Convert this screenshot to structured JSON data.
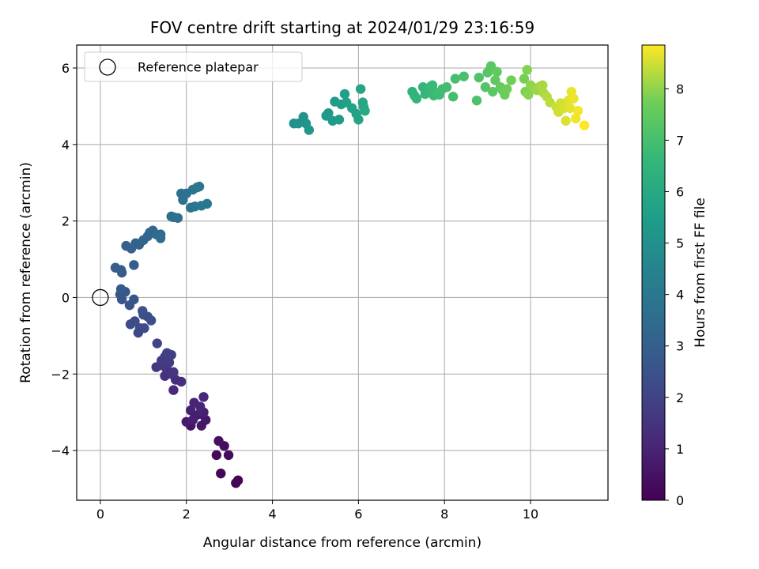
{
  "chart_data": {
    "type": "scatter",
    "title": "FOV centre drift starting at 2024/01/29 23:16:59",
    "xlabel": "Angular distance from reference (arcmin)",
    "ylabel": "Rotation from reference (arcmin)",
    "xlim": [
      -0.55,
      11.8
    ],
    "ylim": [
      -5.3,
      6.6
    ],
    "xticks": [
      0,
      2,
      4,
      6,
      8,
      10
    ],
    "yticks": [
      -4,
      -2,
      0,
      2,
      4,
      6
    ],
    "xtick_labels": [
      "0",
      "2",
      "4",
      "6",
      "8",
      "10"
    ],
    "ytick_labels": [
      "−4",
      "−2",
      "0",
      "2",
      "4",
      "6"
    ],
    "grid": true,
    "legend": {
      "placement": "top-left",
      "entries": [
        "Reference platepar"
      ]
    },
    "reference_point": {
      "x": 0,
      "y": 0,
      "label": "Reference platepar"
    },
    "colorbar": {
      "label": "Hours from first FF file",
      "colormap": "viridis",
      "range": [
        0,
        8.85
      ],
      "ticks": [
        0,
        1,
        2,
        3,
        4,
        5,
        6,
        7,
        8
      ],
      "tick_labels": [
        "0",
        "1",
        "2",
        "3",
        "4",
        "5",
        "6",
        "7",
        "8"
      ]
    },
    "series": [
      {
        "color_by": "hours",
        "points": [
          {
            "x": 3.15,
            "y": -4.85,
            "hours": 0.05
          },
          {
            "x": 3.2,
            "y": -4.78,
            "hours": 0.1
          },
          {
            "x": 2.8,
            "y": -4.6,
            "hours": 0.15
          },
          {
            "x": 2.7,
            "y": -4.12,
            "hours": 0.25
          },
          {
            "x": 2.98,
            "y": -4.12,
            "hours": 0.3
          },
          {
            "x": 2.88,
            "y": -3.88,
            "hours": 0.4
          },
          {
            "x": 2.75,
            "y": -3.75,
            "hours": 0.45
          },
          {
            "x": 2.1,
            "y": -3.35,
            "hours": 0.55
          },
          {
            "x": 2.35,
            "y": -3.35,
            "hours": 0.6
          },
          {
            "x": 2.45,
            "y": -3.2,
            "hours": 0.65
          },
          {
            "x": 2.0,
            "y": -3.25,
            "hours": 0.7
          },
          {
            "x": 2.2,
            "y": -3.1,
            "hours": 0.75
          },
          {
            "x": 2.3,
            "y": -3.05,
            "hours": 0.8
          },
          {
            "x": 2.15,
            "y": -3.2,
            "hours": 0.85
          },
          {
            "x": 2.1,
            "y": -2.95,
            "hours": 0.9
          },
          {
            "x": 2.4,
            "y": -3.0,
            "hours": 0.95
          },
          {
            "x": 2.18,
            "y": -2.75,
            "hours": 1.0
          },
          {
            "x": 2.32,
            "y": -2.85,
            "hours": 1.05
          },
          {
            "x": 2.4,
            "y": -2.6,
            "hours": 1.1
          },
          {
            "x": 1.7,
            "y": -2.42,
            "hours": 1.2
          },
          {
            "x": 1.75,
            "y": -2.15,
            "hours": 1.3
          },
          {
            "x": 1.88,
            "y": -2.2,
            "hours": 1.35
          },
          {
            "x": 1.5,
            "y": -2.05,
            "hours": 1.4
          },
          {
            "x": 1.65,
            "y": -2.0,
            "hours": 1.45
          },
          {
            "x": 1.55,
            "y": -1.9,
            "hours": 1.5
          },
          {
            "x": 1.7,
            "y": -1.95,
            "hours": 1.55
          },
          {
            "x": 1.3,
            "y": -1.82,
            "hours": 1.6
          },
          {
            "x": 1.45,
            "y": -1.78,
            "hours": 1.65
          },
          {
            "x": 1.42,
            "y": -1.65,
            "hours": 1.7
          },
          {
            "x": 1.6,
            "y": -1.7,
            "hours": 1.75
          },
          {
            "x": 1.5,
            "y": -1.55,
            "hours": 1.8
          },
          {
            "x": 1.65,
            "y": -1.5,
            "hours": 1.85
          },
          {
            "x": 1.55,
            "y": -1.45,
            "hours": 1.9
          },
          {
            "x": 1.32,
            "y": -1.2,
            "hours": 2.0
          },
          {
            "x": 0.88,
            "y": -0.92,
            "hours": 2.1
          },
          {
            "x": 0.92,
            "y": -0.8,
            "hours": 2.15
          },
          {
            "x": 1.02,
            "y": -0.8,
            "hours": 2.2
          },
          {
            "x": 0.7,
            "y": -0.7,
            "hours": 2.25
          },
          {
            "x": 0.8,
            "y": -0.62,
            "hours": 2.3
          },
          {
            "x": 1.18,
            "y": -0.6,
            "hours": 2.35
          },
          {
            "x": 1.1,
            "y": -0.5,
            "hours": 2.4
          },
          {
            "x": 1.0,
            "y": -0.45,
            "hours": 2.45
          },
          {
            "x": 0.98,
            "y": -0.35,
            "hours": 2.5
          },
          {
            "x": 0.68,
            "y": -0.2,
            "hours": 2.55
          },
          {
            "x": 0.5,
            "y": -0.05,
            "hours": 2.6
          },
          {
            "x": 0.78,
            "y": -0.05,
            "hours": 2.65
          },
          {
            "x": 0.46,
            "y": 0.08,
            "hours": 2.7
          },
          {
            "x": 0.58,
            "y": 0.15,
            "hours": 2.72
          },
          {
            "x": 0.48,
            "y": 0.22,
            "hours": 2.75
          },
          {
            "x": 0.5,
            "y": 0.65,
            "hours": 2.85
          },
          {
            "x": 0.48,
            "y": 0.72,
            "hours": 2.9
          },
          {
            "x": 0.35,
            "y": 0.78,
            "hours": 2.92
          },
          {
            "x": 0.78,
            "y": 0.85,
            "hours": 2.95
          },
          {
            "x": 0.6,
            "y": 1.35,
            "hours": 3.0
          },
          {
            "x": 0.72,
            "y": 1.28,
            "hours": 3.05
          },
          {
            "x": 0.9,
            "y": 1.38,
            "hours": 3.1
          },
          {
            "x": 0.82,
            "y": 1.42,
            "hours": 3.15
          },
          {
            "x": 1.0,
            "y": 1.5,
            "hours": 3.2
          },
          {
            "x": 1.1,
            "y": 1.6,
            "hours": 3.25
          },
          {
            "x": 1.15,
            "y": 1.7,
            "hours": 3.3
          },
          {
            "x": 1.22,
            "y": 1.75,
            "hours": 3.35
          },
          {
            "x": 1.3,
            "y": 1.65,
            "hours": 3.4
          },
          {
            "x": 1.4,
            "y": 1.65,
            "hours": 3.45
          },
          {
            "x": 1.4,
            "y": 1.55,
            "hours": 3.5
          },
          {
            "x": 1.65,
            "y": 2.12,
            "hours": 3.6
          },
          {
            "x": 1.7,
            "y": 2.1,
            "hours": 3.62
          },
          {
            "x": 1.8,
            "y": 2.08,
            "hours": 3.65
          },
          {
            "x": 1.88,
            "y": 2.72,
            "hours": 3.7
          },
          {
            "x": 1.92,
            "y": 2.55,
            "hours": 3.72
          },
          {
            "x": 2.0,
            "y": 2.72,
            "hours": 3.75
          },
          {
            "x": 2.1,
            "y": 2.35,
            "hours": 3.8
          },
          {
            "x": 2.15,
            "y": 2.82,
            "hours": 3.85
          },
          {
            "x": 2.2,
            "y": 2.38,
            "hours": 3.87
          },
          {
            "x": 2.25,
            "y": 2.88,
            "hours": 3.9
          },
          {
            "x": 2.3,
            "y": 2.9,
            "hours": 3.95
          },
          {
            "x": 2.35,
            "y": 2.4,
            "hours": 3.97
          },
          {
            "x": 2.48,
            "y": 2.45,
            "hours": 4.0
          },
          {
            "x": 4.5,
            "y": 4.55,
            "hours": 5.0
          },
          {
            "x": 4.6,
            "y": 4.55,
            "hours": 5.05
          },
          {
            "x": 4.72,
            "y": 4.72,
            "hours": 5.1
          },
          {
            "x": 4.78,
            "y": 4.55,
            "hours": 5.15
          },
          {
            "x": 4.85,
            "y": 4.38,
            "hours": 5.2
          },
          {
            "x": 5.25,
            "y": 4.75,
            "hours": 5.3
          },
          {
            "x": 5.3,
            "y": 4.82,
            "hours": 5.35
          },
          {
            "x": 5.4,
            "y": 4.62,
            "hours": 5.4
          },
          {
            "x": 5.45,
            "y": 5.12,
            "hours": 5.45
          },
          {
            "x": 5.55,
            "y": 4.65,
            "hours": 5.5
          },
          {
            "x": 5.6,
            "y": 5.05,
            "hours": 5.55
          },
          {
            "x": 5.68,
            "y": 5.32,
            "hours": 5.6
          },
          {
            "x": 5.72,
            "y": 5.1,
            "hours": 5.65
          },
          {
            "x": 5.85,
            "y": 4.95,
            "hours": 5.7
          },
          {
            "x": 5.95,
            "y": 4.8,
            "hours": 5.75
          },
          {
            "x": 6.0,
            "y": 4.65,
            "hours": 5.8
          },
          {
            "x": 6.05,
            "y": 5.45,
            "hours": 5.85
          },
          {
            "x": 6.1,
            "y": 5.1,
            "hours": 5.9
          },
          {
            "x": 6.12,
            "y": 4.98,
            "hours": 5.95
          },
          {
            "x": 6.15,
            "y": 4.88,
            "hours": 6.0
          },
          {
            "x": 7.25,
            "y": 5.38,
            "hours": 6.4
          },
          {
            "x": 7.3,
            "y": 5.28,
            "hours": 6.45
          },
          {
            "x": 7.35,
            "y": 5.2,
            "hours": 6.5
          },
          {
            "x": 7.5,
            "y": 5.5,
            "hours": 6.55
          },
          {
            "x": 7.55,
            "y": 5.32,
            "hours": 6.6
          },
          {
            "x": 7.62,
            "y": 5.42,
            "hours": 6.65
          },
          {
            "x": 7.68,
            "y": 5.52,
            "hours": 6.7
          },
          {
            "x": 7.72,
            "y": 5.55,
            "hours": 6.72
          },
          {
            "x": 7.75,
            "y": 5.28,
            "hours": 6.75
          },
          {
            "x": 7.8,
            "y": 5.35,
            "hours": 6.8
          },
          {
            "x": 7.88,
            "y": 5.3,
            "hours": 6.82
          },
          {
            "x": 7.95,
            "y": 5.45,
            "hours": 6.85
          },
          {
            "x": 8.05,
            "y": 5.5,
            "hours": 6.9
          },
          {
            "x": 8.2,
            "y": 5.25,
            "hours": 6.95
          },
          {
            "x": 8.25,
            "y": 5.72,
            "hours": 7.0
          },
          {
            "x": 8.45,
            "y": 5.78,
            "hours": 7.05
          },
          {
            "x": 8.75,
            "y": 5.15,
            "hours": 7.1
          },
          {
            "x": 8.8,
            "y": 5.75,
            "hours": 7.15
          },
          {
            "x": 8.95,
            "y": 5.5,
            "hours": 7.2
          },
          {
            "x": 9.0,
            "y": 5.88,
            "hours": 7.25
          },
          {
            "x": 9.05,
            "y": 5.95,
            "hours": 7.3
          },
          {
            "x": 9.08,
            "y": 6.05,
            "hours": 7.35
          },
          {
            "x": 9.12,
            "y": 5.38,
            "hours": 7.4
          },
          {
            "x": 9.18,
            "y": 5.68,
            "hours": 7.45
          },
          {
            "x": 9.22,
            "y": 5.9,
            "hours": 7.5
          },
          {
            "x": 9.3,
            "y": 5.5,
            "hours": 7.55
          },
          {
            "x": 9.35,
            "y": 5.42,
            "hours": 7.6
          },
          {
            "x": 9.4,
            "y": 5.3,
            "hours": 7.65
          },
          {
            "x": 9.45,
            "y": 5.45,
            "hours": 7.7
          },
          {
            "x": 9.55,
            "y": 5.68,
            "hours": 7.75
          },
          {
            "x": 9.85,
            "y": 5.72,
            "hours": 7.8
          },
          {
            "x": 9.88,
            "y": 5.38,
            "hours": 7.85
          },
          {
            "x": 9.92,
            "y": 5.95,
            "hours": 7.9
          },
          {
            "x": 9.95,
            "y": 5.3,
            "hours": 7.95
          },
          {
            "x": 10.0,
            "y": 5.55,
            "hours": 8.0
          },
          {
            "x": 10.08,
            "y": 5.48,
            "hours": 8.05
          },
          {
            "x": 10.15,
            "y": 5.42,
            "hours": 8.1
          },
          {
            "x": 10.22,
            "y": 5.52,
            "hours": 8.15
          },
          {
            "x": 10.28,
            "y": 5.55,
            "hours": 8.2
          },
          {
            "x": 10.3,
            "y": 5.35,
            "hours": 8.25
          },
          {
            "x": 10.38,
            "y": 5.25,
            "hours": 8.3
          },
          {
            "x": 10.45,
            "y": 5.1,
            "hours": 8.35
          },
          {
            "x": 10.6,
            "y": 4.98,
            "hours": 8.45
          },
          {
            "x": 10.65,
            "y": 4.85,
            "hours": 8.5
          },
          {
            "x": 10.7,
            "y": 5.08,
            "hours": 8.52
          },
          {
            "x": 10.78,
            "y": 4.95,
            "hours": 8.55
          },
          {
            "x": 10.82,
            "y": 4.62,
            "hours": 8.6
          },
          {
            "x": 10.88,
            "y": 5.15,
            "hours": 8.62
          },
          {
            "x": 10.92,
            "y": 4.95,
            "hours": 8.65
          },
          {
            "x": 10.95,
            "y": 5.38,
            "hours": 8.7
          },
          {
            "x": 11.0,
            "y": 5.2,
            "hours": 8.72
          },
          {
            "x": 11.05,
            "y": 4.68,
            "hours": 8.75
          },
          {
            "x": 11.1,
            "y": 4.88,
            "hours": 8.78
          },
          {
            "x": 11.25,
            "y": 4.5,
            "hours": 8.85
          }
        ]
      }
    ]
  }
}
